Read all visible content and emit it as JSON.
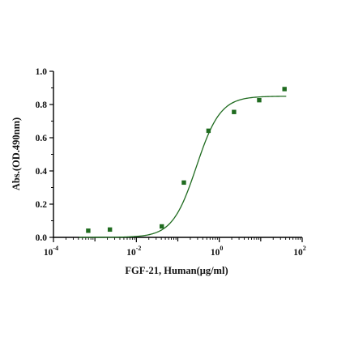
{
  "chart_data": {
    "type": "scatter",
    "title": "",
    "xlabel": "FGF-21, Human(μg/ml)",
    "ylabel": "Abs.(OD.490nm)",
    "x_scale": "log",
    "xlim": [
      0.0001,
      100
    ],
    "ylim": [
      0,
      1.0
    ],
    "x_ticks": [
      {
        "value": 0.0001,
        "base": "10",
        "exp": "-4"
      },
      {
        "value": 0.01,
        "base": "10",
        "exp": "-2"
      },
      {
        "value": 1,
        "base": "10",
        "exp": "0"
      },
      {
        "value": 100,
        "base": "10",
        "exp": "2"
      }
    ],
    "y_ticks": [
      {
        "value": 0.0,
        "label": "0.0"
      },
      {
        "value": 0.2,
        "label": "0.2"
      },
      {
        "value": 0.4,
        "label": "0.4"
      },
      {
        "value": 0.6,
        "label": "0.6"
      },
      {
        "value": 0.8,
        "label": "0.8"
      },
      {
        "value": 1.0,
        "label": "1.0"
      }
    ],
    "grid": false,
    "legend": "none",
    "color": "#1f6b1f",
    "series": [
      {
        "values": [
          {
            "x": 0.00069,
            "y": 0.04
          },
          {
            "x": 0.0023,
            "y": 0.047
          },
          {
            "x": 0.041,
            "y": 0.066
          },
          {
            "x": 0.14,
            "y": 0.33
          },
          {
            "x": 0.55,
            "y": 0.642
          },
          {
            "x": 2.27,
            "y": 0.755
          },
          {
            "x": 9.2,
            "y": 0.826
          },
          {
            "x": 37.5,
            "y": 0.893
          }
        ]
      }
    ],
    "fit_curve": {
      "model": "4PL",
      "bottom": 0.0,
      "top": 0.85,
      "ec50": 0.28,
      "hill": 1.5
    }
  }
}
